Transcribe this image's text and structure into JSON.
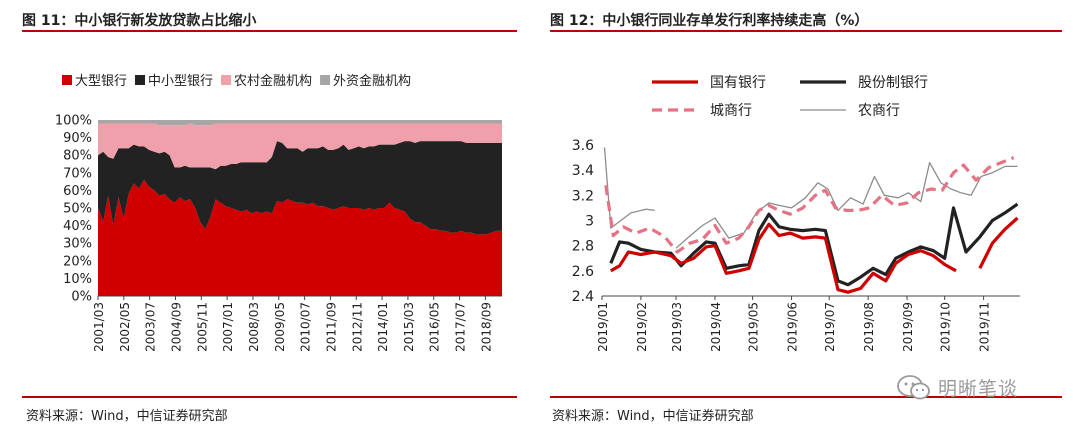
{
  "charts": {
    "left": {
      "title": "图 11：中小银行新发放贷款占比缩小",
      "source": "资料来源：Wind，中信证券研究部"
    },
    "right": {
      "title": "图 12：中小银行同业存单发行利率持续走高（%）",
      "source": "资料来源：Wind，中信证券研究部"
    }
  },
  "watermark": {
    "text": "明晰笔谈"
  },
  "chart_data": [
    {
      "type": "area",
      "stacked": true,
      "title": "图 11：中小银行新发放贷款占比缩小",
      "ylim": [
        0,
        100
      ],
      "yticks": [
        "0%",
        "10%",
        "20%",
        "30%",
        "40%",
        "50%",
        "60%",
        "70%",
        "80%",
        "90%",
        "100%"
      ],
      "xticks": [
        "2001/03",
        "2002/05",
        "2003/07",
        "2004/09",
        "2005/11",
        "2007/01",
        "2008/03",
        "2009/05",
        "2010/07",
        "2011/09",
        "2012/11",
        "2014/01",
        "2015/03",
        "2016/05",
        "2017/07",
        "2018/09"
      ],
      "x_start": "2001/03",
      "x_end": "2019/06",
      "legend_position": "top",
      "colors": {
        "大型银行": "#d00000",
        "中小型银行": "#222222",
        "农村金融机构": "#f0a0aa",
        "外资金融机构": "#a6a6a6"
      },
      "series": [
        {
          "name": "大型银行",
          "values": [
            50,
            42,
            57,
            40,
            56,
            44,
            58,
            64,
            61,
            66,
            62,
            60,
            57,
            58,
            55,
            53,
            56,
            54,
            55,
            50,
            42,
            38,
            45,
            55,
            53,
            51,
            50,
            49,
            48,
            49,
            47,
            48,
            47,
            48,
            47,
            54,
            53,
            55,
            54,
            53,
            53,
            52,
            53,
            51,
            51,
            50,
            49,
            50,
            51,
            50,
            50,
            50,
            49,
            50,
            49,
            50,
            50,
            53,
            50,
            49,
            48,
            44,
            42,
            42,
            40,
            38,
            38,
            37,
            37,
            36,
            36,
            37,
            36,
            36,
            35,
            35,
            35,
            36,
            37,
            37
          ]
        },
        {
          "name": "中小型银行",
          "values": [
            30,
            40,
            22,
            38,
            28,
            40,
            26,
            22,
            24,
            19,
            21,
            22,
            24,
            24,
            25,
            20,
            17,
            20,
            18,
            23,
            31,
            35,
            28,
            17,
            21,
            23,
            25,
            26,
            28,
            27,
            29,
            28,
            29,
            28,
            32,
            34,
            34,
            29,
            30,
            31,
            29,
            32,
            31,
            33,
            34,
            33,
            34,
            34,
            35,
            33,
            34,
            35,
            35,
            35,
            36,
            36,
            36,
            33,
            36,
            38,
            40,
            44,
            45,
            46,
            48,
            50,
            50,
            51,
            51,
            52,
            52,
            51,
            51,
            51,
            52,
            52,
            52,
            51,
            50,
            50
          ]
        },
        {
          "name": "农村金融机构",
          "values": [
            18,
            16,
            19,
            20,
            14,
            14,
            14,
            12,
            13,
            13,
            15,
            16,
            16,
            15,
            17,
            24,
            24,
            23,
            25,
            24,
            24,
            24,
            24,
            26,
            24,
            24,
            23,
            23,
            22,
            22,
            22,
            22,
            22,
            22,
            19,
            10,
            11,
            14,
            14,
            14,
            16,
            14,
            14,
            14,
            13,
            15,
            15,
            14,
            12,
            15,
            14,
            13,
            14,
            13,
            13,
            12,
            12,
            12,
            12,
            11,
            10,
            10,
            11,
            10,
            10,
            10,
            10,
            10,
            10,
            10,
            10,
            10,
            11,
            11,
            11,
            11,
            11,
            11,
            11,
            11
          ]
        },
        {
          "name": "外资金融机构",
          "values": [
            2,
            2,
            2,
            2,
            2,
            2,
            2,
            2,
            2,
            2,
            2,
            2,
            3,
            3,
            3,
            3,
            3,
            3,
            2,
            3,
            3,
            3,
            3,
            2,
            2,
            2,
            2,
            2,
            2,
            2,
            2,
            2,
            2,
            2,
            2,
            2,
            2,
            2,
            2,
            2,
            2,
            2,
            2,
            2,
            2,
            2,
            2,
            2,
            2,
            2,
            2,
            2,
            2,
            2,
            2,
            2,
            2,
            2,
            2,
            2,
            2,
            2,
            2,
            2,
            2,
            2,
            2,
            2,
            2,
            2,
            2,
            2,
            2,
            2,
            2,
            2,
            2,
            2,
            2,
            2
          ]
        }
      ]
    },
    {
      "type": "line",
      "title": "图 12：中小银行同业存单发行利率持续走高（%）",
      "ylim": [
        2.4,
        3.6
      ],
      "yticks": [
        "2.4",
        "2.6",
        "2.8",
        "3",
        "3.2",
        "3.4",
        "3.6"
      ],
      "xticks": [
        "2019/01",
        "2019/02",
        "2019/03",
        "2019/04",
        "2019/05",
        "2019/06",
        "2019/07",
        "2019/08",
        "2019/09",
        "2019/10",
        "2019/11"
      ],
      "x_start": "2019-01-01",
      "x_end": "2019-11-30",
      "legend_position": "top",
      "colors": {
        "国有银行": "#d00000",
        "股份制银行": "#222222",
        "城商行": "#e57383",
        "农商行": "#8c8c8c"
      },
      "series": [
        {
          "name": "国有银行",
          "style": "solid",
          "points": [
            [
              "2019-01-08",
              2.6
            ],
            [
              "2019-01-15",
              2.64
            ],
            [
              "2019-01-22",
              2.75
            ],
            [
              "2019-02-01",
              2.73
            ],
            [
              "2019-02-12",
              2.75
            ],
            [
              "2019-02-25",
              2.72
            ],
            [
              "2019-03-05",
              2.66
            ],
            [
              "2019-03-15",
              2.7
            ],
            [
              "2019-03-25",
              2.79
            ],
            [
              "2019-04-01",
              2.8
            ],
            [
              "2019-04-10",
              2.58
            ],
            [
              "2019-04-20",
              2.6
            ],
            [
              "2019-04-28",
              2.62
            ],
            [
              "2019-05-06",
              2.85
            ],
            [
              "2019-05-14",
              2.97
            ],
            [
              "2019-05-22",
              2.88
            ],
            [
              "2019-05-31",
              2.9
            ],
            [
              "2019-06-10",
              2.86
            ],
            [
              "2019-06-20",
              2.87
            ],
            [
              "2019-06-28",
              2.86
            ],
            [
              "2019-07-08",
              2.45
            ],
            [
              "2019-07-16",
              2.43
            ],
            [
              "2019-07-26",
              2.46
            ],
            [
              "2019-08-05",
              2.58
            ],
            [
              "2019-08-15",
              2.52
            ],
            [
              "2019-08-23",
              2.66
            ],
            [
              "2019-09-02",
              2.73
            ],
            [
              "2019-09-12",
              2.76
            ],
            [
              "2019-09-22",
              2.72
            ],
            [
              "2019-10-01",
              2.65
            ],
            [
              "2019-10-10",
              2.6
            ],
            null,
            [
              "2019-10-29",
              2.62
            ],
            [
              "2019-11-08",
              2.82
            ],
            [
              "2019-11-18",
              2.93
            ],
            [
              "2019-11-28",
              3.02
            ]
          ]
        },
        {
          "name": "股份制银行",
          "style": "solid",
          "points": [
            [
              "2019-01-08",
              2.66
            ],
            [
              "2019-01-15",
              2.83
            ],
            [
              "2019-01-22",
              2.82
            ],
            [
              "2019-02-01",
              2.77
            ],
            [
              "2019-02-12",
              2.75
            ],
            [
              "2019-02-25",
              2.74
            ],
            [
              "2019-03-05",
              2.64
            ],
            [
              "2019-03-15",
              2.74
            ],
            [
              "2019-03-25",
              2.83
            ],
            [
              "2019-04-01",
              2.82
            ],
            [
              "2019-04-10",
              2.62
            ],
            [
              "2019-04-20",
              2.64
            ],
            [
              "2019-04-28",
              2.65
            ],
            [
              "2019-05-06",
              2.92
            ],
            [
              "2019-05-14",
              3.05
            ],
            [
              "2019-05-22",
              2.95
            ],
            [
              "2019-05-31",
              2.93
            ],
            [
              "2019-06-10",
              2.92
            ],
            [
              "2019-06-20",
              2.93
            ],
            [
              "2019-06-28",
              2.92
            ],
            [
              "2019-07-08",
              2.52
            ],
            [
              "2019-07-16",
              2.49
            ],
            [
              "2019-07-26",
              2.55
            ],
            [
              "2019-08-05",
              2.62
            ],
            [
              "2019-08-15",
              2.57
            ],
            [
              "2019-08-23",
              2.7
            ],
            [
              "2019-09-02",
              2.75
            ],
            [
              "2019-09-12",
              2.79
            ],
            [
              "2019-09-22",
              2.76
            ],
            [
              "2019-10-01",
              2.7
            ],
            [
              "2019-10-08",
              3.1
            ],
            [
              "2019-10-18",
              2.75
            ],
            [
              "2019-10-29",
              2.87
            ],
            [
              "2019-11-08",
              3.0
            ],
            [
              "2019-11-18",
              3.06
            ],
            [
              "2019-11-28",
              3.13
            ]
          ]
        },
        {
          "name": "城商行",
          "style": "dashed",
          "points": [
            [
              "2019-01-04",
              3.28
            ],
            [
              "2019-01-10",
              2.88
            ],
            [
              "2019-01-18",
              2.95
            ],
            [
              "2019-01-28",
              2.9
            ],
            [
              "2019-02-08",
              2.94
            ],
            [
              "2019-02-20",
              2.87
            ],
            [
              "2019-03-02",
              2.75
            ],
            [
              "2019-03-12",
              2.82
            ],
            [
              "2019-03-22",
              2.85
            ],
            [
              "2019-04-01",
              2.96
            ],
            [
              "2019-04-10",
              2.82
            ],
            [
              "2019-04-20",
              2.86
            ],
            [
              "2019-04-28",
              2.95
            ],
            [
              "2019-05-06",
              3.08
            ],
            [
              "2019-05-14",
              3.12
            ],
            [
              "2019-05-22",
              3.08
            ],
            [
              "2019-05-31",
              3.05
            ],
            [
              "2019-06-10",
              3.1
            ],
            [
              "2019-06-20",
              3.2
            ],
            [
              "2019-06-28",
              3.24
            ],
            [
              "2019-07-06",
              3.1
            ],
            [
              "2019-07-15",
              3.08
            ],
            [
              "2019-07-24",
              3.08
            ],
            [
              "2019-08-02",
              3.1
            ],
            [
              "2019-08-12",
              3.2
            ],
            [
              "2019-08-22",
              3.12
            ],
            [
              "2019-09-01",
              3.14
            ],
            [
              "2019-09-10",
              3.22
            ],
            [
              "2019-09-20",
              3.25
            ],
            [
              "2019-09-29",
              3.24
            ],
            [
              "2019-10-08",
              3.38
            ],
            [
              "2019-10-16",
              3.44
            ],
            [
              "2019-10-26",
              3.32
            ],
            [
              "2019-11-05",
              3.42
            ],
            [
              "2019-11-15",
              3.46
            ],
            [
              "2019-11-25",
              3.5
            ]
          ]
        },
        {
          "name": "农商行",
          "style": "thin",
          "points": [
            [
              "2019-01-03",
              3.58
            ],
            [
              "2019-01-08",
              2.94
            ],
            [
              "2019-01-16",
              3.0
            ],
            [
              "2019-01-24",
              3.06
            ],
            [
              "2019-02-05",
              3.09
            ],
            [
              "2019-02-12",
              3.08
            ],
            null,
            [
              "2019-03-01",
              2.78
            ],
            [
              "2019-03-10",
              2.86
            ],
            [
              "2019-03-22",
              2.96
            ],
            [
              "2019-04-01",
              3.02
            ],
            [
              "2019-04-12",
              2.86
            ],
            [
              "2019-04-24",
              2.9
            ],
            [
              "2019-05-04",
              3.06
            ],
            [
              "2019-05-14",
              3.14
            ],
            [
              "2019-05-22",
              3.12
            ],
            [
              "2019-06-01",
              3.1
            ],
            [
              "2019-06-12",
              3.18
            ],
            [
              "2019-06-22",
              3.3
            ],
            [
              "2019-06-30",
              3.25
            ],
            [
              "2019-07-08",
              3.08
            ],
            [
              "2019-07-18",
              3.18
            ],
            [
              "2019-07-28",
              3.13
            ],
            [
              "2019-08-06",
              3.35
            ],
            [
              "2019-08-14",
              3.2
            ],
            [
              "2019-08-25",
              3.18
            ],
            [
              "2019-09-02",
              3.22
            ],
            [
              "2019-09-12",
              3.15
            ],
            [
              "2019-09-19",
              3.46
            ],
            [
              "2019-09-28",
              3.3
            ],
            [
              "2019-10-06",
              3.25
            ],
            [
              "2019-10-14",
              3.22
            ],
            [
              "2019-10-22",
              3.2
            ],
            [
              "2019-10-30",
              3.35
            ],
            [
              "2019-11-08",
              3.38
            ],
            [
              "2019-11-18",
              3.43
            ],
            [
              "2019-11-28",
              3.43
            ]
          ]
        }
      ]
    }
  ]
}
